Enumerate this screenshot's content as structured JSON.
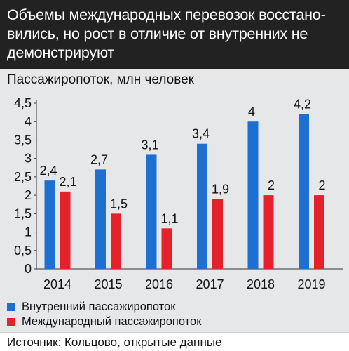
{
  "title": "Объемы международных перевозок восстано-вились, но рост в отличие от внутренних не демонстрируют",
  "title_lines": [
    "Объемы международных перевозок восстано-",
    "вились, но рост в отличие от внутренних не",
    "демонстрируют"
  ],
  "source": "Источник: Кольцово, открытые данные",
  "colors": {
    "domestic": "#1d6fd1",
    "international": "#e5212b",
    "header_bg": "#222222",
    "plot_bg": "#e6e7e8"
  },
  "chart_data": {
    "type": "bar",
    "ylabel": "Пассажиропоток, млн человек",
    "categories": [
      "2014",
      "2015",
      "2016",
      "2017",
      "2018",
      "2019"
    ],
    "series": [
      {
        "name": "Внутренний пассажиропоток",
        "values": [
          2.4,
          2.7,
          3.1,
          3.4,
          4.0,
          4.2
        ],
        "labels": [
          "2,4",
          "2,7",
          "3,1",
          "3,4",
          "4",
          "4,2"
        ]
      },
      {
        "name": "Международный пассажиропоток",
        "values": [
          2.1,
          1.5,
          1.1,
          1.9,
          2.0,
          2.0
        ],
        "labels": [
          "2,1",
          "1,5",
          "1,1",
          "1,9",
          "2",
          "2"
        ]
      }
    ],
    "yticks": [
      0,
      0.5,
      1,
      1.5,
      2,
      2.5,
      3,
      3.5,
      4,
      4.5
    ],
    "ytick_labels": [
      "0",
      "0,5",
      "1",
      "1,5",
      "2",
      "2,5",
      "3",
      "3,5",
      "4",
      "4,5"
    ],
    "ylim": [
      0,
      4.5
    ],
    "grid": false,
    "legend_position": "bottom-left"
  }
}
